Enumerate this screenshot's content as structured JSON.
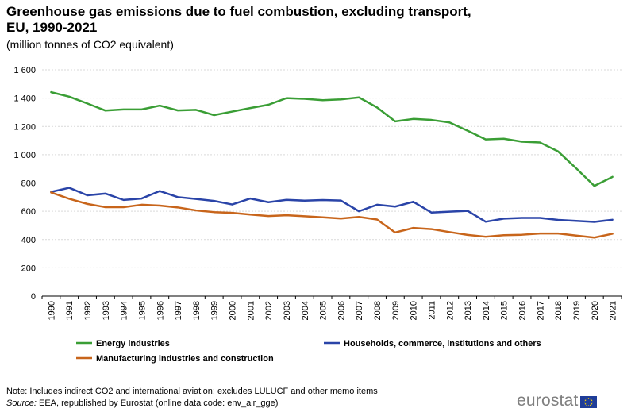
{
  "title_line1": "Greenhouse gas emissions due to fuel combustion, excluding transport,",
  "title_line2": "EU, 1990-2021",
  "subtitle": "(million tonnes of CO2 equivalent)",
  "note": "Note: Includes indirect CO2 and international aviation; excludes LULUCF and other memo items",
  "source_label": "Source:",
  "source_text": " EEA, republished by Eurostat (online data code: env_air_gge)",
  "brand": "eurostat",
  "flag_icon": "eu-flag-icon",
  "chart_data": {
    "type": "line",
    "title": "Greenhouse gas emissions due to fuel combustion, excluding transport, EU, 1990-2021",
    "ylabel": "million tonnes of CO2 equivalent",
    "xlabel": "",
    "ylim": [
      0,
      1600
    ],
    "yticks": [
      0,
      200,
      400,
      600,
      800,
      1000,
      1200,
      1400,
      1600
    ],
    "ytick_labels": [
      "0",
      "200",
      "400",
      "600",
      "800",
      "1 000",
      "1 200",
      "1 400",
      "1 600"
    ],
    "grid": true,
    "categories": [
      "1990",
      "1991",
      "1992",
      "1993",
      "1994",
      "1995",
      "1996",
      "1997",
      "1998",
      "1999",
      "2000",
      "2001",
      "2002",
      "2003",
      "2004",
      "2005",
      "2006",
      "2007",
      "2008",
      "2009",
      "2010",
      "2011",
      "2012",
      "2013",
      "2014",
      "2015",
      "2016",
      "2017",
      "2018",
      "2019",
      "2020",
      "2021"
    ],
    "series": [
      {
        "name": "Energy industries",
        "color": "#3a9e35",
        "values": [
          1442,
          1410,
          1362,
          1312,
          1320,
          1320,
          1347,
          1313,
          1317,
          1280,
          1305,
          1330,
          1353,
          1400,
          1395,
          1385,
          1391,
          1405,
          1334,
          1236,
          1253,
          1246,
          1228,
          1170,
          1108,
          1113,
          1092,
          1086,
          1023,
          903,
          779,
          843
        ]
      },
      {
        "name": "Households, commerce, institutions and others",
        "color": "#2a44a8",
        "values": [
          737,
          766,
          713,
          725,
          680,
          690,
          743,
          700,
          687,
          673,
          648,
          690,
          664,
          681,
          675,
          679,
          676,
          600,
          646,
          633,
          667,
          591,
          597,
          603,
          526,
          548,
          553,
          553,
          539,
          532,
          525,
          540
        ]
      },
      {
        "name": "Manufacturing industries and construction",
        "color": "#c8651b",
        "values": [
          733,
          688,
          652,
          629,
          629,
          646,
          640,
          627,
          606,
          594,
          589,
          577,
          566,
          572,
          565,
          557,
          549,
          560,
          542,
          450,
          482,
          474,
          453,
          433,
          420,
          431,
          434,
          443,
          443,
          428,
          414,
          441
        ]
      }
    ],
    "legend": [
      "Energy industries",
      "Households, commerce, institutions and others",
      "Manufacturing industries and construction"
    ],
    "legend_position": "bottom"
  }
}
